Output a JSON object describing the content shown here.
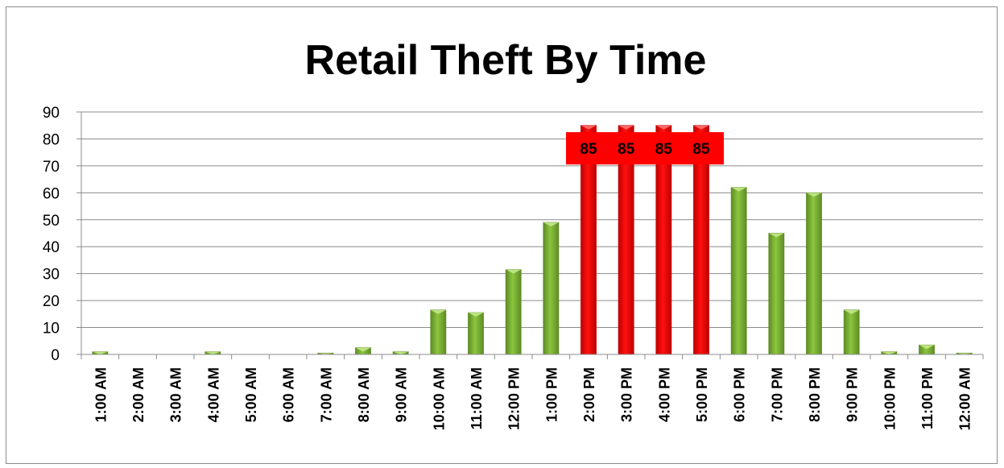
{
  "chart_data": {
    "type": "bar",
    "title": "Retail Theft By Time",
    "xlabel": "",
    "ylabel": "",
    "ylim": [
      0,
      90
    ],
    "yticks": [
      0,
      10,
      20,
      30,
      40,
      50,
      60,
      70,
      80,
      90
    ],
    "grid": true,
    "legend": "none",
    "categories": [
      "1:00 AM",
      "2:00 AM",
      "3:00 AM",
      "4:00 AM",
      "5:00 AM",
      "6:00 AM",
      "7:00 AM",
      "8:00 AM",
      "9:00 AM",
      "10:00 AM",
      "11:00 AM",
      "12:00 PM",
      "1:00 PM",
      "2:00 PM",
      "3:00 PM",
      "4:00 PM",
      "5:00 PM",
      "6:00 PM",
      "7:00 PM",
      "8:00 PM",
      "9:00 PM",
      "10:00 PM",
      "11:00 PM",
      "12:00 AM"
    ],
    "values": [
      1,
      0,
      0,
      1,
      0,
      0,
      0.5,
      2.5,
      1,
      16.5,
      15.5,
      31.5,
      49,
      85,
      85,
      85,
      85,
      62,
      45,
      60,
      16.5,
      1,
      3.5,
      0.5
    ],
    "highlighted": [
      false,
      false,
      false,
      false,
      false,
      false,
      false,
      false,
      false,
      false,
      false,
      false,
      false,
      true,
      true,
      true,
      true,
      false,
      false,
      false,
      false,
      false,
      false,
      false
    ],
    "data_labels": [
      "",
      "",
      "",
      "",
      "",
      "",
      "",
      "",
      "",
      "",
      "",
      "",
      "",
      "85",
      "85",
      "85",
      "85",
      "",
      "",
      "",
      "",
      "",
      "",
      ""
    ],
    "colors": {
      "bar": "#8cc63f",
      "bar_top": "#c3e888",
      "bar_edge": "#5e8c25",
      "highlight": "#ff1010",
      "highlight_edge": "#c00000",
      "label_box": "#ff0000",
      "grid": "#8c8c8c"
    }
  }
}
